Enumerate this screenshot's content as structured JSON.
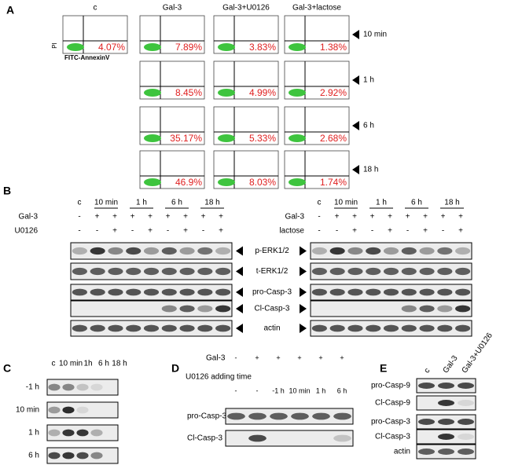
{
  "panel_a": {
    "letter": "A",
    "columns": [
      "c",
      "Gal-3",
      "Gal-3+U0126",
      "Gal-3+lactose"
    ],
    "y_axis": "PI",
    "x_axis": "FITC-AnnexinV",
    "rows": [
      {
        "time": "10 min",
        "percents": [
          "4.07%",
          "7.89%",
          "3.83%",
          "1.38%"
        ]
      },
      {
        "time": "1 h",
        "percents": [
          "8.45%",
          "4.99%",
          "2.92%"
        ]
      },
      {
        "time": "6 h",
        "percents": [
          "35.17%",
          "5.33%",
          "2.68%"
        ]
      },
      {
        "time": "18 h",
        "percents": [
          "46.9%",
          "8.03%",
          "1.74%"
        ]
      }
    ]
  },
  "panel_b": {
    "letter": "B",
    "left": {
      "times": [
        "c",
        "10 min",
        "1 h",
        "6 h",
        "18 h"
      ],
      "treatments": [
        {
          "label": "Gal-3",
          "signs": [
            "-",
            "+",
            "+",
            "+",
            "+",
            "+",
            "+",
            "+",
            "+"
          ]
        },
        {
          "label": "U0126",
          "signs": [
            "-",
            "-",
            "+",
            "-",
            "+",
            "-",
            "+",
            "-",
            "+"
          ]
        }
      ]
    },
    "right": {
      "times": [
        "c",
        "10 min",
        "1 h",
        "6 h",
        "18 h"
      ],
      "treatments": [
        {
          "label": "Gal-3",
          "signs": [
            "-",
            "+",
            "+",
            "+",
            "+",
            "+",
            "+",
            "+",
            "+"
          ]
        },
        {
          "label": "lactose",
          "signs": [
            "-",
            "-",
            "+",
            "-",
            "+",
            "-",
            "+",
            "-",
            "+"
          ]
        }
      ]
    },
    "blots": [
      "p-ERK1/2",
      "t-ERK1/2",
      "pro-Casp-3",
      "Cl-Casp-3",
      "actin"
    ]
  },
  "panel_c": {
    "letter": "C",
    "columns": [
      "c",
      "10 min",
      "1h",
      "6 h",
      "18 h"
    ],
    "rows": [
      "-1 h",
      "10 min",
      "1 h",
      "6 h"
    ]
  },
  "panel_d": {
    "letter": "D",
    "treatments": [
      {
        "label": "Gal-3",
        "signs": [
          "-",
          "+",
          "+",
          "+",
          "+",
          "+"
        ]
      },
      {
        "label": "U0126 adding time",
        "signs": [
          "-",
          "-",
          "-1 h",
          "10 min",
          "1 h",
          "6 h"
        ]
      }
    ],
    "blots": [
      "pro-Casp-3",
      "Cl-Casp-3"
    ]
  },
  "panel_e": {
    "letter": "E",
    "columns": [
      "c",
      "Gal-3",
      "Gal-3+U0126"
    ],
    "blots": [
      "pro-Casp-9",
      "Cl-Casp-9",
      "pro-Casp-3",
      "Cl-Casp-3",
      "actin"
    ]
  }
}
